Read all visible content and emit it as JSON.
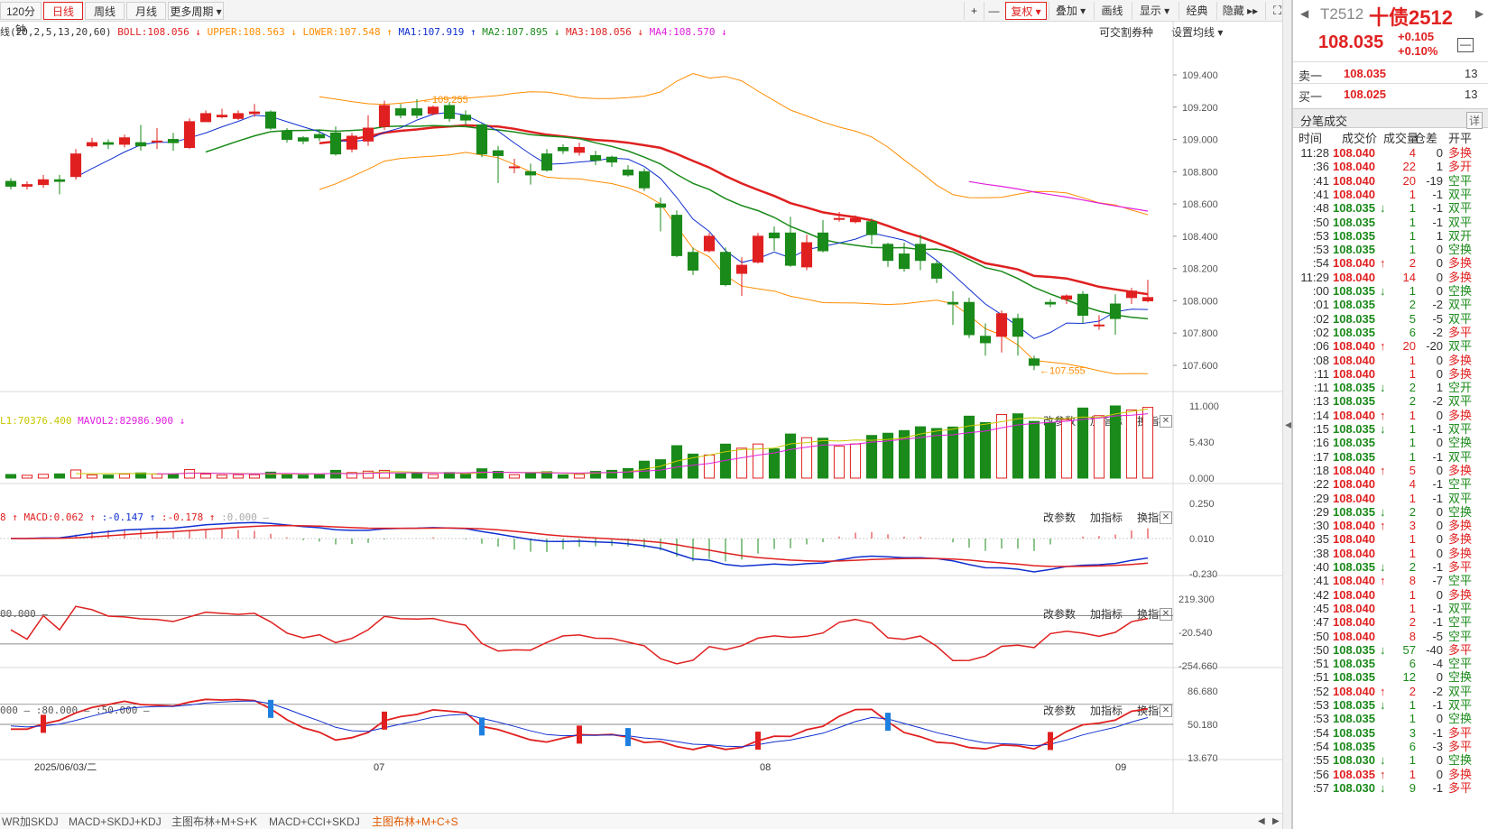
{
  "toolbar": {
    "left_tabs": [
      "120分钟",
      "日线",
      "周线",
      "月线",
      "更多周期 ▾"
    ],
    "active_tab": "日线",
    "right_items": [
      "+",
      "—",
      "复权 ▾",
      "叠加 ▾",
      "画线",
      "显示 ▾",
      "经典",
      "隐藏 ▸▸"
    ]
  },
  "main_indicator": {
    "prefix": "线(20,2,5,13,20,60)",
    "items": [
      {
        "label": "BOLL:108.056",
        "arrow": "↓",
        "color": "#e02020"
      },
      {
        "label": "UPPER:108.563",
        "arrow": "↓",
        "color": "#ff8c00"
      },
      {
        "label": "LOWER:107.548",
        "arrow": "↑",
        "color": "#ff8c00"
      },
      {
        "label": "MA1:107.919",
        "arrow": "↑",
        "color": "#1030d0"
      },
      {
        "label": "MA2:107.895",
        "arrow": "↓",
        "color": "#1a8a1a"
      },
      {
        "label": "MA3:108.056",
        "arrow": "↓",
        "color": "#e02020"
      },
      {
        "label": "MA4:108.570",
        "arrow": "↓",
        "color": "#e020e0"
      }
    ],
    "buttons": [
      "可交割券种",
      "设置均线 ▾"
    ]
  },
  "vol_indicator": {
    "items": [
      {
        "label": "L1:70376.400",
        "color": "#c8c800"
      },
      {
        "label": "MAVOL2:82986.900",
        "arrow": "↓",
        "color": "#e020e0"
      }
    ]
  },
  "macd_indicator": {
    "items": [
      {
        "label": "8",
        "arrow": "↑",
        "color": "#e02020"
      },
      {
        "label": "MACD:0.062",
        "arrow": "↑",
        "color": "#e02020"
      },
      {
        "label": ":-0.147",
        "arrow": "↑",
        "color": "#1030d0"
      },
      {
        "label": ":-0.178",
        "arrow": "↑",
        "color": "#e02020"
      },
      {
        "label": ":0.000 —",
        "color": "#aaaaaa"
      }
    ]
  },
  "cci_indicator": {
    "items": [
      {
        "label": "00.000 —",
        "color": "#555555"
      }
    ]
  },
  "kdj_indicator": {
    "items": [
      {
        "label": "000 — :80.000 — :50.000 —",
        "color": "#555555"
      }
    ]
  },
  "panel_buttons": [
    "改参数",
    "加指标",
    "换指标"
  ],
  "y_axis": {
    "price": [
      "109.400",
      "109.200",
      "109.000",
      "108.800",
      "108.600",
      "108.400",
      "108.200",
      "108.000",
      "107.800",
      "107.600"
    ],
    "vol": [
      "11.000",
      "5.430",
      "0.000"
    ],
    "macd": [
      "0.250",
      "0.010",
      "-0.230"
    ],
    "cci": [
      "219.300",
      "-20.540",
      "-254.660"
    ],
    "kdj": [
      "86.680",
      "50.180",
      "13.670"
    ]
  },
  "x_axis": {
    "date_label": "2025/06/03/二",
    "months": [
      "07",
      "08",
      "09"
    ]
  },
  "annotations": {
    "high": "←109.255",
    "low": "←107.555"
  },
  "bottom_tabs": [
    "WR加SKDJ",
    "MACD+SKDJ+KDJ",
    "主图布林+M+S+K",
    "MACD+CCI+SKDJ",
    "主图布林+M+C+S"
  ],
  "bottom_active": "主图布林+M+C+S",
  "quote": {
    "code": "T2512",
    "name": "十债2512",
    "price": "108.035",
    "change": "+0.105",
    "change_pct": "+0.10%",
    "sell1_label": "卖一",
    "sell1_price": "108.035",
    "sell1_vol": "13",
    "buy1_label": "买一",
    "buy1_price": "108.025",
    "buy1_vol": "13",
    "ticks_title": "分笔成交",
    "ticks_detail": "详",
    "tick_headers": [
      "时间",
      "成交价",
      "成交量",
      "仓差",
      "开平"
    ]
  },
  "ticks": [
    {
      "t": "11:28",
      "p": "108.040",
      "a": "",
      "v": "4",
      "d": "0",
      "k": "多换",
      "c": "r"
    },
    {
      "t": ":36",
      "p": "108.040",
      "a": "",
      "v": "22",
      "d": "1",
      "k": "多开",
      "c": "r"
    },
    {
      "t": ":41",
      "p": "108.040",
      "a": "",
      "v": "20",
      "d": "-19",
      "k": "空平",
      "c": "r"
    },
    {
      "t": ":41",
      "p": "108.040",
      "a": "",
      "v": "1",
      "d": "-1",
      "k": "双平",
      "c": "r"
    },
    {
      "t": ":48",
      "p": "108.035",
      "a": "↓",
      "v": "1",
      "d": "-1",
      "k": "双平",
      "c": "g"
    },
    {
      "t": ":50",
      "p": "108.035",
      "a": "",
      "v": "1",
      "d": "-1",
      "k": "双平",
      "c": "g"
    },
    {
      "t": ":53",
      "p": "108.035",
      "a": "",
      "v": "1",
      "d": "1",
      "k": "双开",
      "c": "g"
    },
    {
      "t": ":53",
      "p": "108.035",
      "a": "",
      "v": "1",
      "d": "0",
      "k": "空换",
      "c": "g"
    },
    {
      "t": ":54",
      "p": "108.040",
      "a": "↑",
      "v": "2",
      "d": "0",
      "k": "多换",
      "c": "r"
    },
    {
      "t": "11:29",
      "p": "108.040",
      "a": "",
      "v": "14",
      "d": "0",
      "k": "多换",
      "c": "r"
    },
    {
      "t": ":00",
      "p": "108.035",
      "a": "↓",
      "v": "1",
      "d": "0",
      "k": "空换",
      "c": "g"
    },
    {
      "t": ":01",
      "p": "108.035",
      "a": "",
      "v": "2",
      "d": "-2",
      "k": "双平",
      "c": "g"
    },
    {
      "t": ":02",
      "p": "108.035",
      "a": "",
      "v": "5",
      "d": "-5",
      "k": "双平",
      "c": "g"
    },
    {
      "t": ":02",
      "p": "108.035",
      "a": "",
      "v": "6",
      "d": "-2",
      "k": "多平",
      "c": "g"
    },
    {
      "t": ":06",
      "p": "108.040",
      "a": "↑",
      "v": "20",
      "d": "-20",
      "k": "双平",
      "c": "r"
    },
    {
      "t": ":08",
      "p": "108.040",
      "a": "",
      "v": "1",
      "d": "0",
      "k": "多换",
      "c": "r"
    },
    {
      "t": ":11",
      "p": "108.040",
      "a": "",
      "v": "1",
      "d": "0",
      "k": "多换",
      "c": "r"
    },
    {
      "t": ":11",
      "p": "108.035",
      "a": "↓",
      "v": "2",
      "d": "1",
      "k": "空开",
      "c": "g"
    },
    {
      "t": ":13",
      "p": "108.035",
      "a": "",
      "v": "2",
      "d": "-2",
      "k": "双平",
      "c": "g"
    },
    {
      "t": ":14",
      "p": "108.040",
      "a": "↑",
      "v": "1",
      "d": "0",
      "k": "多换",
      "c": "r"
    },
    {
      "t": ":15",
      "p": "108.035",
      "a": "↓",
      "v": "1",
      "d": "-1",
      "k": "双平",
      "c": "g"
    },
    {
      "t": ":16",
      "p": "108.035",
      "a": "",
      "v": "1",
      "d": "0",
      "k": "空换",
      "c": "g"
    },
    {
      "t": ":17",
      "p": "108.035",
      "a": "",
      "v": "1",
      "d": "-1",
      "k": "双平",
      "c": "g"
    },
    {
      "t": ":18",
      "p": "108.040",
      "a": "↑",
      "v": "5",
      "d": "0",
      "k": "多换",
      "c": "r"
    },
    {
      "t": ":22",
      "p": "108.040",
      "a": "",
      "v": "4",
      "d": "-1",
      "k": "空平",
      "c": "r"
    },
    {
      "t": ":29",
      "p": "108.040",
      "a": "",
      "v": "1",
      "d": "-1",
      "k": "双平",
      "c": "r"
    },
    {
      "t": ":29",
      "p": "108.035",
      "a": "↓",
      "v": "2",
      "d": "0",
      "k": "空换",
      "c": "g"
    },
    {
      "t": ":30",
      "p": "108.040",
      "a": "↑",
      "v": "3",
      "d": "0",
      "k": "多换",
      "c": "r"
    },
    {
      "t": ":35",
      "p": "108.040",
      "a": "",
      "v": "1",
      "d": "0",
      "k": "多换",
      "c": "r"
    },
    {
      "t": ":38",
      "p": "108.040",
      "a": "",
      "v": "1",
      "d": "0",
      "k": "多换",
      "c": "r"
    },
    {
      "t": ":40",
      "p": "108.035",
      "a": "↓",
      "v": "2",
      "d": "-1",
      "k": "多平",
      "c": "g"
    },
    {
      "t": ":41",
      "p": "108.040",
      "a": "↑",
      "v": "8",
      "d": "-7",
      "k": "空平",
      "c": "r"
    },
    {
      "t": ":42",
      "p": "108.040",
      "a": "",
      "v": "1",
      "d": "0",
      "k": "多换",
      "c": "r"
    },
    {
      "t": ":45",
      "p": "108.040",
      "a": "",
      "v": "1",
      "d": "-1",
      "k": "双平",
      "c": "r"
    },
    {
      "t": ":47",
      "p": "108.040",
      "a": "",
      "v": "2",
      "d": "-1",
      "k": "空平",
      "c": "r"
    },
    {
      "t": ":50",
      "p": "108.040",
      "a": "",
      "v": "8",
      "d": "-5",
      "k": "空平",
      "c": "r"
    },
    {
      "t": ":50",
      "p": "108.035",
      "a": "↓",
      "v": "57",
      "d": "-40",
      "k": "多平",
      "c": "g"
    },
    {
      "t": ":51",
      "p": "108.035",
      "a": "",
      "v": "6",
      "d": "-4",
      "k": "空平",
      "c": "g"
    },
    {
      "t": ":51",
      "p": "108.035",
      "a": "",
      "v": "12",
      "d": "0",
      "k": "空换",
      "c": "g"
    },
    {
      "t": ":52",
      "p": "108.040",
      "a": "↑",
      "v": "2",
      "d": "-2",
      "k": "双平",
      "c": "r"
    },
    {
      "t": ":53",
      "p": "108.035",
      "a": "↓",
      "v": "1",
      "d": "-1",
      "k": "双平",
      "c": "g"
    },
    {
      "t": ":53",
      "p": "108.035",
      "a": "",
      "v": "1",
      "d": "0",
      "k": "空换",
      "c": "g"
    },
    {
      "t": ":54",
      "p": "108.035",
      "a": "",
      "v": "3",
      "d": "-1",
      "k": "多平",
      "c": "g"
    },
    {
      "t": ":54",
      "p": "108.035",
      "a": "",
      "v": "6",
      "d": "-3",
      "k": "多平",
      "c": "g"
    },
    {
      "t": ":55",
      "p": "108.030",
      "a": "↓",
      "v": "1",
      "d": "0",
      "k": "空换",
      "c": "g"
    },
    {
      "t": ":56",
      "p": "108.035",
      "a": "↑",
      "v": "1",
      "d": "0",
      "k": "多换",
      "c": "r"
    },
    {
      "t": ":57",
      "p": "108.030",
      "a": "↓",
      "v": "9",
      "d": "-1",
      "k": "多平",
      "c": "g"
    }
  ],
  "chart_data": {
    "type": "candlestick",
    "title": "",
    "ylim": [
      107.5,
      109.5
    ],
    "candles": [
      [
        108.74,
        108.71,
        108.76,
        108.69
      ],
      [
        108.71,
        108.72,
        108.74,
        108.69
      ],
      [
        108.72,
        108.75,
        108.78,
        108.7
      ],
      [
        108.75,
        108.74,
        108.78,
        108.66
      ],
      [
        108.77,
        108.91,
        108.94,
        108.75
      ],
      [
        108.96,
        108.98,
        109.01,
        108.95
      ],
      [
        108.98,
        108.97,
        109.0,
        108.94
      ],
      [
        108.97,
        109.01,
        109.03,
        108.95
      ],
      [
        108.98,
        108.96,
        109.09,
        108.93
      ],
      [
        108.99,
        108.99,
        109.07,
        108.94
      ],
      [
        109.0,
        108.98,
        109.04,
        108.93
      ],
      [
        108.95,
        109.11,
        109.13,
        108.94
      ],
      [
        109.11,
        109.16,
        109.18,
        109.11
      ],
      [
        109.14,
        109.15,
        109.19,
        109.13
      ],
      [
        109.13,
        109.16,
        109.18,
        109.12
      ],
      [
        109.16,
        109.17,
        109.22,
        109.14
      ],
      [
        109.17,
        109.07,
        109.18,
        109.06
      ],
      [
        109.05,
        109.0,
        109.07,
        108.98
      ],
      [
        109.01,
        108.99,
        109.02,
        108.97
      ],
      [
        109.03,
        109.01,
        109.06,
        108.99
      ],
      [
        109.04,
        108.91,
        109.08,
        108.9
      ],
      [
        108.94,
        109.02,
        109.04,
        108.92
      ],
      [
        108.99,
        109.07,
        109.15,
        108.96
      ],
      [
        109.08,
        109.21,
        109.24,
        109.06
      ],
      [
        109.19,
        109.15,
        109.22,
        109.13
      ],
      [
        109.19,
        109.15,
        109.25,
        109.13
      ],
      [
        109.16,
        109.2,
        109.21,
        109.15
      ],
      [
        109.21,
        109.13,
        109.23,
        109.11
      ],
      [
        109.15,
        109.12,
        109.18,
        109.09
      ],
      [
        109.09,
        108.91,
        109.1,
        108.89
      ],
      [
        108.93,
        108.9,
        108.96,
        108.73
      ],
      [
        108.83,
        108.83,
        108.88,
        108.79
      ],
      [
        108.8,
        108.78,
        108.85,
        108.72
      ],
      [
        108.91,
        108.81,
        108.94,
        108.8
      ],
      [
        108.95,
        108.93,
        108.97,
        108.91
      ],
      [
        108.92,
        108.95,
        108.98,
        108.9
      ],
      [
        108.9,
        108.87,
        108.93,
        108.84
      ],
      [
        108.89,
        108.86,
        108.9,
        108.83
      ],
      [
        108.81,
        108.78,
        108.84,
        108.77
      ],
      [
        108.8,
        108.7,
        108.82,
        108.68
      ],
      [
        108.6,
        108.58,
        108.64,
        108.43
      ],
      [
        108.53,
        108.28,
        108.56,
        108.27
      ],
      [
        108.3,
        108.19,
        108.33,
        108.16
      ],
      [
        108.31,
        108.4,
        108.42,
        108.3
      ],
      [
        108.3,
        108.1,
        108.33,
        108.09
      ],
      [
        108.17,
        108.22,
        108.27,
        108.03
      ],
      [
        108.24,
        108.4,
        108.42,
        108.23
      ],
      [
        108.42,
        108.39,
        108.46,
        108.31
      ],
      [
        108.42,
        108.22,
        108.52,
        108.21
      ],
      [
        108.21,
        108.36,
        108.41,
        108.19
      ],
      [
        108.42,
        108.31,
        108.5,
        108.3
      ],
      [
        108.51,
        108.51,
        108.55,
        108.49
      ],
      [
        108.49,
        108.51,
        108.53,
        108.48
      ],
      [
        108.49,
        108.41,
        108.51,
        108.35
      ],
      [
        108.35,
        108.25,
        108.36,
        108.21
      ],
      [
        108.29,
        108.2,
        108.36,
        108.18
      ],
      [
        108.35,
        108.25,
        108.41,
        108.19
      ],
      [
        108.23,
        108.14,
        108.25,
        108.11
      ],
      [
        107.99,
        107.98,
        108.06,
        107.85
      ],
      [
        107.99,
        107.79,
        108.02,
        107.77
      ],
      [
        107.78,
        107.74,
        107.86,
        107.66
      ],
      [
        107.78,
        107.92,
        107.94,
        107.68
      ],
      [
        107.89,
        107.78,
        107.92,
        107.66
      ],
      [
        107.64,
        107.6,
        107.66,
        107.57
      ],
      [
        107.99,
        107.98,
        108.01,
        107.96
      ],
      [
        108.01,
        108.03,
        108.04,
        107.98
      ],
      [
        108.04,
        107.91,
        108.06,
        107.86
      ],
      [
        107.85,
        107.85,
        107.91,
        107.82
      ],
      [
        107.98,
        107.89,
        108.04,
        107.79
      ],
      [
        108.02,
        108.06,
        108.08,
        107.98
      ],
      [
        108.0,
        108.02,
        108.13,
        107.99
      ]
    ]
  }
}
